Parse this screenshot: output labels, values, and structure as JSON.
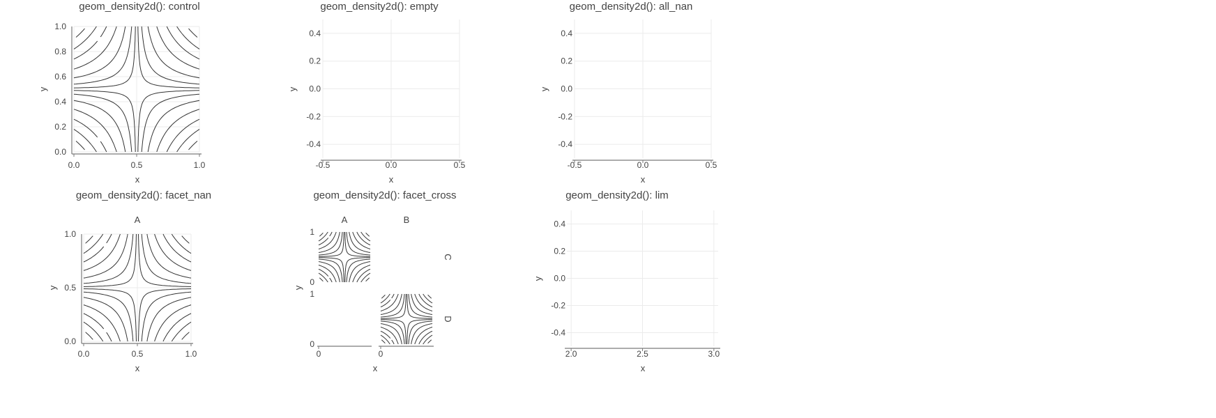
{
  "chart_data": [
    {
      "id": "control",
      "type": "contour",
      "title": "geom_density2d(): control",
      "xlabel": "x",
      "ylabel": "y",
      "xlim": [
        0,
        1
      ],
      "ylim": [
        0,
        1
      ],
      "xticks": [
        0.0,
        0.5,
        1.0
      ],
      "xtick_labels": [
        "0.0",
        "0.5",
        "1.0"
      ],
      "yticks": [
        0.0,
        0.2,
        0.4,
        0.6,
        0.8,
        1.0
      ],
      "ytick_labels": [
        "0.0",
        "0.2",
        "0.4",
        "0.6",
        "0.8",
        "1.0"
      ],
      "axis_lines": true,
      "grid": true,
      "contours": true
    },
    {
      "id": "empty",
      "type": "contour",
      "title": "geom_density2d(): empty",
      "xlabel": "x",
      "ylabel": "y",
      "xlim": [
        -0.5,
        0.5
      ],
      "ylim": [
        -0.5,
        0.5
      ],
      "xticks": [
        -0.5,
        0.0,
        0.5
      ],
      "xtick_labels": [
        "-0.5",
        "0.0",
        "0.5"
      ],
      "yticks": [
        -0.4,
        -0.2,
        0.0,
        0.2,
        0.4
      ],
      "ytick_labels": [
        "-0.4",
        "-0.2",
        "0.0",
        "0.2",
        "0.4"
      ],
      "axis_lines": true,
      "grid": true,
      "contours": false
    },
    {
      "id": "all_nan",
      "type": "contour",
      "title": "geom_density2d(): all_nan",
      "xlabel": "x",
      "ylabel": "y",
      "xlim": [
        -0.5,
        0.5
      ],
      "ylim": [
        -0.5,
        0.5
      ],
      "xticks": [
        -0.5,
        0.0,
        0.5
      ],
      "xtick_labels": [
        "-0.5",
        "0.0",
        "0.5"
      ],
      "yticks": [
        -0.4,
        -0.2,
        0.0,
        0.2,
        0.4
      ],
      "ytick_labels": [
        "-0.4",
        "-0.2",
        "0.0",
        "0.2",
        "0.4"
      ],
      "axis_lines": true,
      "grid": true,
      "contours": false
    },
    {
      "id": "facet_nan",
      "type": "contour",
      "title": "geom_density2d(): facet_nan",
      "xlabel": "x",
      "ylabel": "y",
      "xlim": [
        0,
        1
      ],
      "ylim": [
        0,
        1
      ],
      "xticks": [
        0.0,
        0.5,
        1.0
      ],
      "xtick_labels": [
        "0.0",
        "0.5",
        "1.0"
      ],
      "yticks": [
        0.0,
        0.5,
        1.0
      ],
      "ytick_labels": [
        "0.0",
        "0.5",
        "1.0"
      ],
      "axis_lines": true,
      "grid": true,
      "facet_label": "A",
      "contours": true
    },
    {
      "id": "facet_cross",
      "type": "contour",
      "title": "geom_density2d(): facet_cross",
      "xlabel": "x",
      "ylabel": "y",
      "xlim": [
        0,
        1
      ],
      "ylim": [
        0,
        1
      ],
      "xticks": [
        0
      ],
      "xtick_labels": [
        "0"
      ],
      "yticks": [
        0,
        1
      ],
      "ytick_labels": [
        "0",
        "1"
      ],
      "col_labels": [
        "A",
        "B"
      ],
      "row_labels": [
        "C",
        "D"
      ],
      "panels": [
        {
          "row": "C",
          "col": "A",
          "contours": true
        },
        {
          "row": "C",
          "col": "B",
          "contours": false
        },
        {
          "row": "D",
          "col": "A",
          "contours": false
        },
        {
          "row": "D",
          "col": "B",
          "contours": true
        }
      ]
    },
    {
      "id": "lim",
      "type": "contour",
      "title": "geom_density2d(): lim",
      "xlabel": "x",
      "ylabel": "y",
      "xlim": [
        1.97,
        3.03
      ],
      "ylim": [
        -0.5,
        0.5
      ],
      "xticks": [
        2.0,
        2.5,
        3.0
      ],
      "xtick_labels": [
        "2.0",
        "2.5",
        "3.0"
      ],
      "yticks": [
        -0.4,
        -0.2,
        0.0,
        0.2,
        0.4
      ],
      "ytick_labels": [
        "-0.4",
        "-0.2",
        "0.0",
        "0.2",
        "0.4"
      ],
      "axis_lines": true,
      "grid": true,
      "contours": false
    }
  ]
}
